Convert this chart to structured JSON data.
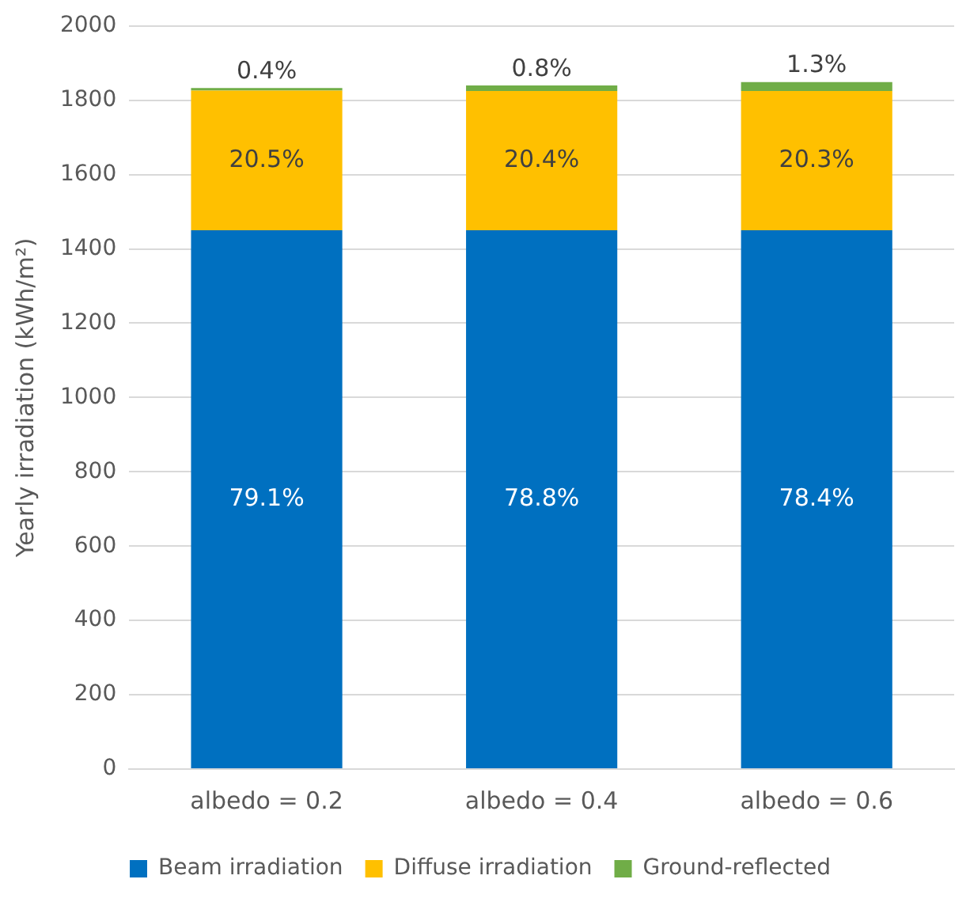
{
  "chart_data": {
    "type": "bar",
    "stacked": true,
    "ylabel": "Yearly irradiation (kWh/m²)",
    "categories": [
      "albedo = 0.2",
      "albedo = 0.4",
      "albedo = 0.6"
    ],
    "series": [
      {
        "name": "Beam irradiation",
        "color": "#0070c0",
        "values": [
          1450,
          1450,
          1450
        ]
      },
      {
        "name": "Diffuse irradiation",
        "color": "#ffc000",
        "values": [
          376,
          375,
          375
        ]
      },
      {
        "name": "Ground-reflected",
        "color": "#70ad47",
        "values": [
          7,
          15,
          24
        ]
      }
    ],
    "annotations": [
      "79.1%",
      "78.8%",
      "78.4%",
      {
        "text": "20.5%",
        "x": "albedo = 0.2",
        "y": 1826
      },
      {
        "text": "20.4%",
        "x": "albedo = 0.4",
        "y": 1825
      },
      {
        "text": "20.3%",
        "x": "albedo = 0.6",
        "y": 1825
      },
      {
        "text": "0.4%",
        "x": "albedo = 0.2",
        "y": 1833
      },
      {
        "text": "0.8%",
        "x": "albedo = 0.4",
        "y": 1840
      },
      {
        "text": "1.3%",
        "x": "albedo = 0.6",
        "y": 1849
      }
    ],
    "ylim": [
      0,
      2000
    ],
    "yticks": [
      0,
      200,
      400,
      600,
      800,
      1000,
      1200,
      1400,
      1600,
      1800,
      2000
    ],
    "grid": "y",
    "legend": "bottom"
  }
}
